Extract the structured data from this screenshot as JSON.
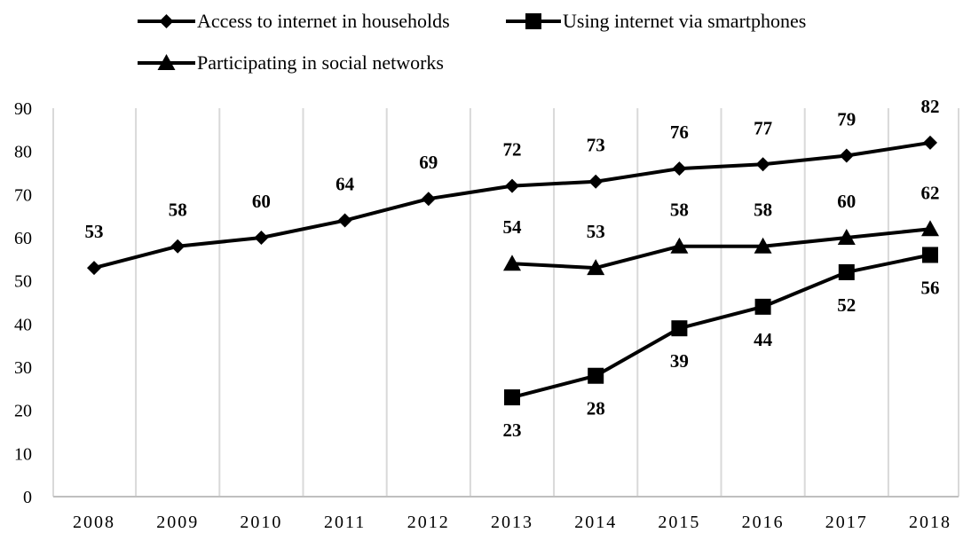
{
  "chart_data": {
    "type": "line",
    "title": "",
    "xlabel": "",
    "ylabel": "",
    "categories": [
      "2008",
      "2009",
      "2010",
      "2011",
      "2012",
      "2013",
      "2014",
      "2015",
      "2016",
      "2017",
      "2018"
    ],
    "ylim": [
      0,
      90
    ],
    "yticks": [
      0,
      10,
      20,
      30,
      40,
      50,
      60,
      70,
      80,
      90
    ],
    "grid": "vertical",
    "legend_position": "top",
    "series": [
      {
        "name": "Access to internet in households",
        "marker": "diamond",
        "label_position": "above",
        "values": [
          53,
          58,
          60,
          64,
          69,
          72,
          73,
          76,
          77,
          79,
          82
        ]
      },
      {
        "name": "Using internet via smartphones",
        "marker": "square",
        "label_position": "below",
        "values": [
          null,
          null,
          null,
          null,
          null,
          23,
          28,
          39,
          44,
          52,
          56
        ]
      },
      {
        "name": "Participating in social networks",
        "marker": "triangle",
        "label_position": "above",
        "values": [
          null,
          null,
          null,
          null,
          null,
          54,
          53,
          58,
          58,
          60,
          62
        ]
      }
    ]
  }
}
